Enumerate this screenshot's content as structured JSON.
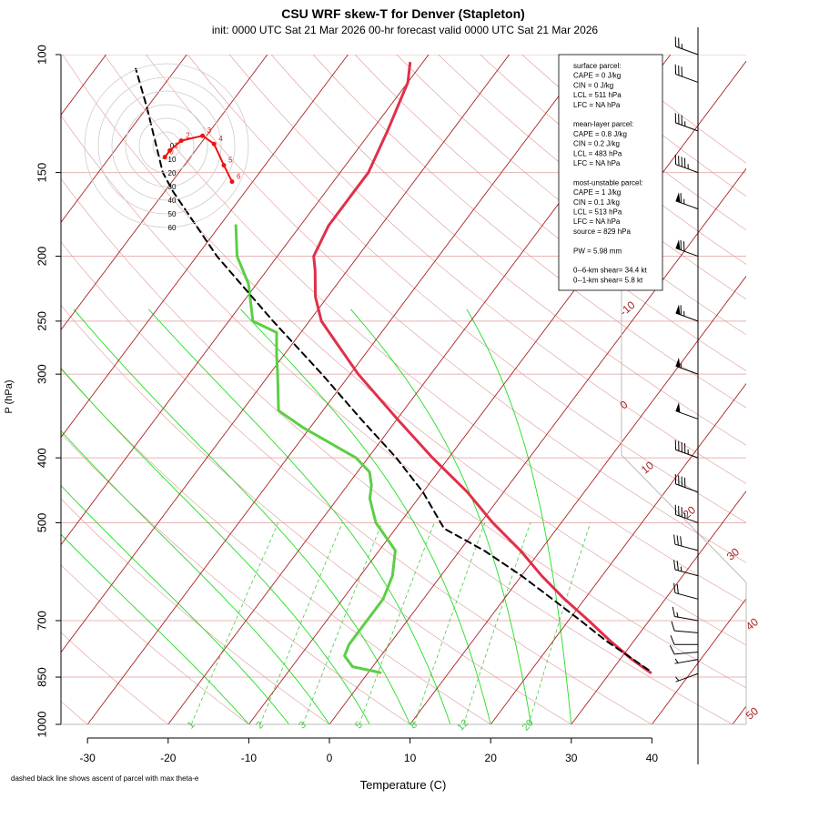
{
  "title": "CSU WRF skew-T for Denver (Stapleton)",
  "subtitle": "init: 0000 UTC Sat 21 Mar 2026    00-hr forecast valid 0000 UTC Sat 21 Mar 2026",
  "footnote": "dashed black line shows ascent of parcel with max theta-e",
  "colors": {
    "temperature": "#e0304a",
    "dewpoint": "#5ccf45",
    "parcel": "#000000",
    "isotherm": "#aa2222",
    "dry_adiabat": "#dd9999",
    "moist_adiabat": "#22dd22",
    "mixing_ratio": "#44cc44",
    "isobar": "#e8b4b4",
    "hodograph": "#ee1111",
    "hodo_ring": "#cccccc"
  },
  "stats_box": {
    "lines": [
      "surface parcel:",
      "CAPE = 0 J/kg",
      "CIN = 0 J/kg",
      "LCL = 511 hPa",
      "LFC = NA hPa",
      "",
      "mean-layer parcel:",
      "CAPE = 0.8 J/kg",
      "CIN = 0.2 J/kg",
      "LCL = 483 hPa",
      "LFC = NA hPa",
      "",
      "most-unstable parcel:",
      "CAPE = 1 J/kg",
      "CIN = 0.1 J/kg",
      "LCL = 513 hPa",
      "LFC = NA hPa",
      "source = 829 hPa",
      "",
      "PW =  5.98 mm",
      "",
      "0--6-km shear= 34.4 kt",
      "0--1-km shear= 5.8 kt"
    ]
  },
  "chart_data": {
    "type": "line",
    "title": "CSU WRF skew-T for Denver (Stapleton)",
    "xlabel": "Temperature (C)",
    "ylabel": "P (hPa)",
    "x_ticks": [
      -30,
      -20,
      -10,
      0,
      10,
      20,
      30,
      40
    ],
    "y_ticks": [
      100,
      150,
      200,
      250,
      300,
      400,
      500,
      700,
      850,
      1000
    ],
    "isotherm_labels": [
      -10,
      0,
      10,
      20,
      30,
      40,
      50
    ],
    "mixing_ratio_labels": [
      1,
      2,
      3,
      5,
      8,
      12,
      20
    ],
    "series": [
      {
        "name": "temperature",
        "pressure": [
          837,
          800,
          750,
          700,
          650,
          600,
          550,
          500,
          450,
          400,
          350,
          300,
          270,
          250,
          230,
          210,
          200,
          180,
          160,
          150,
          130,
          110,
          103
        ],
        "temp": [
          35,
          31.5,
          27,
          22.5,
          17.5,
          12.5,
          7.5,
          1.5,
          -4.5,
          -12,
          -20,
          -29,
          -34.5,
          -38.5,
          -41.5,
          -44,
          -45.5,
          -46.5,
          -46.5,
          -46.5,
          -48,
          -50,
          -51.5
        ]
      },
      {
        "name": "dewpoint",
        "pressure": [
          837,
          820,
          790,
          760,
          700,
          650,
          600,
          550,
          500,
          460,
          440,
          420,
          400,
          360,
          340,
          300,
          280,
          260,
          250,
          220,
          200,
          180
        ],
        "temp": [
          1.5,
          -2.5,
          -4.5,
          -5,
          -5,
          -5,
          -6,
          -8,
          -13,
          -16,
          -17,
          -18.5,
          -21.5,
          -31,
          -35.5,
          -39,
          -41,
          -43,
          -47,
          -51,
          -55,
          -58
        ]
      },
      {
        "name": "parcel",
        "pressure": [
          829,
          750,
          700,
          650,
          600,
          550,
          510,
          450,
          400,
          350,
          300,
          250,
          200,
          160,
          150,
          120,
          105
        ],
        "temp": [
          34.5,
          26.5,
          21.5,
          16,
          10,
          3,
          -4,
          -10,
          -16.5,
          -24.5,
          -33.5,
          -44.5,
          -57.5,
          -69,
          -72,
          -80,
          -85
        ]
      }
    ],
    "wind_barbs": [
      {
        "p": 840,
        "dir": 250,
        "spd": 3
      },
      {
        "p": 800,
        "dir": 260,
        "spd": 5
      },
      {
        "p": 780,
        "dir": 265,
        "spd": 8
      },
      {
        "p": 760,
        "dir": 270,
        "spd": 10
      },
      {
        "p": 730,
        "dir": 275,
        "spd": 12
      },
      {
        "p": 700,
        "dir": 280,
        "spd": 15
      },
      {
        "p": 650,
        "dir": 285,
        "spd": 20
      },
      {
        "p": 600,
        "dir": 285,
        "spd": 25
      },
      {
        "p": 550,
        "dir": 285,
        "spd": 30
      },
      {
        "p": 500,
        "dir": 290,
        "spd": 35
      },
      {
        "p": 450,
        "dir": 290,
        "spd": 40
      },
      {
        "p": 400,
        "dir": 290,
        "spd": 45
      },
      {
        "p": 350,
        "dir": 290,
        "spd": 50
      },
      {
        "p": 300,
        "dir": 290,
        "spd": 55
      },
      {
        "p": 250,
        "dir": 290,
        "spd": 65
      },
      {
        "p": 200,
        "dir": 290,
        "spd": 70
      },
      {
        "p": 170,
        "dir": 290,
        "spd": 65
      },
      {
        "p": 150,
        "dir": 290,
        "spd": 45
      },
      {
        "p": 130,
        "dir": 290,
        "spd": 35
      },
      {
        "p": 110,
        "dir": 290,
        "spd": 30
      },
      {
        "p": 100,
        "dir": 290,
        "spd": 25
      }
    ],
    "hodograph": {
      "ring_labels": [
        0,
        10,
        20,
        30,
        40,
        50,
        60
      ],
      "point_labels": [
        "0",
        "1",
        "2",
        "3",
        "4",
        "5",
        "6"
      ],
      "u": [
        -0.5,
        1,
        4.5,
        11,
        14.5,
        17.5,
        20
      ],
      "v": [
        -3.5,
        -1.5,
        1.5,
        3,
        0.5,
        -6,
        -11
      ]
    }
  }
}
